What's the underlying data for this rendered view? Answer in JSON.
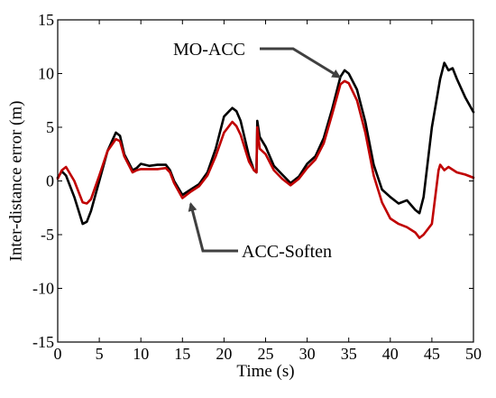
{
  "chart_data": {
    "type": "line",
    "title": "",
    "xlabel": "Time (s)",
    "ylabel": "Inter-distance error (m)",
    "xlim": [
      0,
      50
    ],
    "ylim": [
      -15,
      15
    ],
    "xticks": [
      0,
      5,
      10,
      15,
      20,
      25,
      30,
      35,
      40,
      45,
      50
    ],
    "yticks": [
      -15,
      -10,
      -5,
      0,
      5,
      10,
      15
    ],
    "grid": false,
    "legend": "none",
    "series": [
      {
        "name": "MO-ACC",
        "color": "#000000",
        "x": [
          0,
          0.5,
          1,
          2,
          3,
          3.5,
          4,
          5,
          6,
          7,
          7.5,
          8,
          9,
          9.5,
          10,
          11,
          12,
          13,
          13.5,
          14,
          15,
          16,
          17,
          18,
          19,
          20,
          21,
          21.5,
          22,
          23,
          23.6,
          23.9,
          24,
          24.3,
          25,
          26,
          27,
          28,
          29,
          30,
          31,
          32,
          33,
          34,
          34.5,
          35,
          36,
          37,
          38,
          39,
          40,
          41,
          42,
          43,
          43.5,
          44,
          45,
          46,
          46.5,
          47,
          47.5,
          48,
          49,
          50
        ],
        "y": [
          0.3,
          0.9,
          0.5,
          -1.5,
          -4,
          -3.8,
          -2.8,
          0,
          2.8,
          4.5,
          4.2,
          2.5,
          1,
          1.2,
          1.6,
          1.4,
          1.5,
          1.5,
          1,
          0,
          -1.3,
          -0.8,
          -0.3,
          0.8,
          3,
          6,
          6.8,
          6.5,
          5.6,
          2.3,
          1,
          0.8,
          5.6,
          4.1,
          3.2,
          1.4,
          0.6,
          -0.2,
          0.4,
          1.6,
          2.3,
          4,
          6.7,
          9.7,
          10.3,
          10,
          8.5,
          5.5,
          1.5,
          -0.8,
          -1.5,
          -2.1,
          -1.8,
          -2.7,
          -3,
          -1.5,
          5,
          9.5,
          11,
          10.3,
          10.5,
          9.5,
          7.8,
          6.4
        ]
      },
      {
        "name": "ACC-Soften",
        "color": "#c00000",
        "x": [
          0,
          0.5,
          1,
          2,
          3,
          3.5,
          4,
          5,
          6,
          7,
          7.5,
          8,
          9,
          9.5,
          10,
          11,
          12,
          13,
          13.5,
          14,
          15,
          16,
          17,
          18,
          19,
          20,
          21,
          21.5,
          22,
          23,
          23.6,
          23.9,
          24,
          24.3,
          25,
          26,
          27,
          28,
          29,
          30,
          31,
          32,
          33,
          34,
          34.5,
          35,
          36,
          37,
          38,
          39,
          40,
          41,
          42,
          43,
          43.5,
          44,
          45,
          45.8,
          46,
          46.5,
          47,
          48,
          49,
          50
        ],
        "y": [
          0.2,
          1.0,
          1.3,
          0,
          -2,
          -2.1,
          -1.7,
          0.5,
          2.8,
          3.9,
          3.7,
          2.3,
          0.8,
          1,
          1.1,
          1.1,
          1.1,
          1.2,
          0.8,
          -0.2,
          -1.6,
          -1,
          -0.5,
          0.5,
          2.3,
          4.5,
          5.5,
          5.1,
          4.3,
          1.8,
          1.0,
          0.8,
          5.0,
          3.0,
          2.5,
          1,
          0.2,
          -0.4,
          0.2,
          1.2,
          2,
          3.5,
          6.2,
          9,
          9.3,
          9.1,
          7.5,
          4.5,
          0.5,
          -2,
          -3.5,
          -4,
          -4.3,
          -4.8,
          -5.3,
          -5,
          -4,
          1,
          1.5,
          1.0,
          1.3,
          0.8,
          0.6,
          0.3
        ]
      }
    ],
    "annotations": [
      {
        "text": "MO-ACC",
        "points_to": "MO-ACC",
        "at": [
          34,
          9.5
        ]
      },
      {
        "text": "ACC-Soften",
        "points_to": "ACC-Soften",
        "at": [
          16,
          -1.8
        ]
      }
    ]
  }
}
